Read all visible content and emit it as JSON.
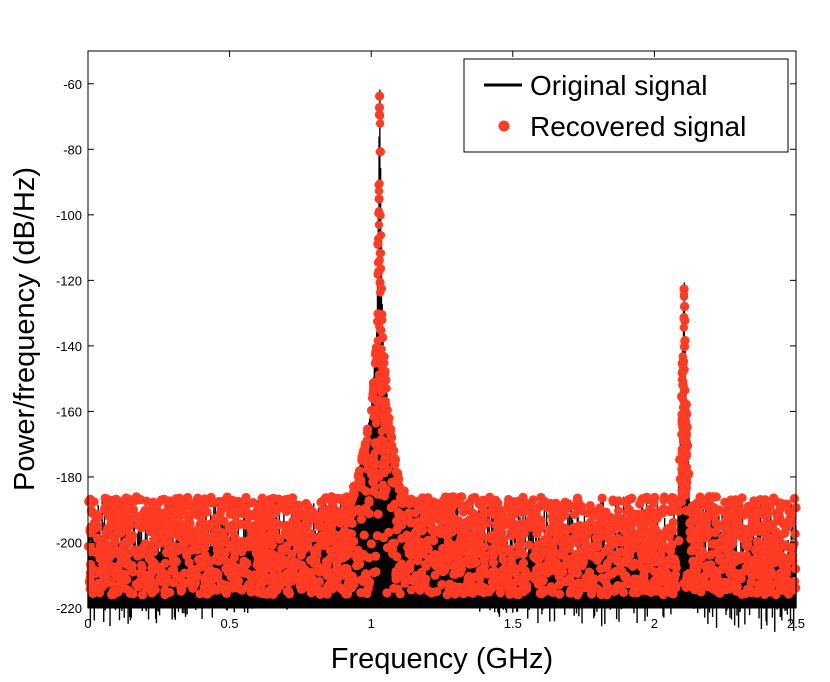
{
  "chart_data": {
    "type": "line",
    "title": "",
    "xlabel": "Frequency (GHz)",
    "ylabel": "Power/frequency (dB/Hz)",
    "xlim": [
      0,
      2.5
    ],
    "ylim": [
      -220,
      -50
    ],
    "xticks": [
      0,
      0.5,
      1,
      1.5,
      2,
      2.5
    ],
    "xtick_labels": [
      "0",
      "0.5",
      "1",
      "1.5",
      "2",
      "2.5"
    ],
    "yticks": [
      -60,
      -80,
      -100,
      -120,
      -140,
      -160,
      -180,
      -200,
      -220
    ],
    "ytick_labels": [
      "-60",
      "-80",
      "-100",
      "-120",
      "-140",
      "-160",
      "-180",
      "-200",
      "-220"
    ],
    "grid": false,
    "legend_position": "top-right",
    "noise_floor": [
      -218,
      -186
    ],
    "series": [
      {
        "name": "Original signal",
        "style": "line",
        "color": "#000000",
        "x": [
          0,
          0.8,
          0.9,
          0.95,
          1.0,
          1.02,
          1.025,
          1.03,
          1.035,
          1.04,
          1.06,
          1.1,
          1.2,
          1.5,
          2.0,
          2.08,
          2.1,
          2.105,
          2.11,
          2.13,
          2.2,
          2.5
        ],
        "y": [
          -205,
          -198,
          -190,
          -180,
          -160,
          -135,
          -100,
          -57,
          -100,
          -135,
          -160,
          -182,
          -195,
          -203,
          -204,
          -200,
          -140,
          -117,
          -150,
          -200,
          -204,
          -206
        ]
      },
      {
        "name": "Recovered signal",
        "style": "markers",
        "color": "#ff3b24",
        "x": [
          0,
          0.8,
          0.9,
          0.95,
          1.0,
          1.02,
          1.025,
          1.03,
          1.035,
          1.04,
          1.06,
          1.1,
          1.2,
          1.5,
          2.0,
          2.08,
          2.1,
          2.105,
          2.11,
          2.13,
          2.2,
          2.5
        ],
        "y": [
          -205,
          -198,
          -190,
          -180,
          -160,
          -135,
          -100,
          -57,
          -100,
          -135,
          -160,
          -182,
          -195,
          -203,
          -204,
          -200,
          -140,
          -119,
          -150,
          -200,
          -204,
          -206
        ]
      }
    ]
  }
}
